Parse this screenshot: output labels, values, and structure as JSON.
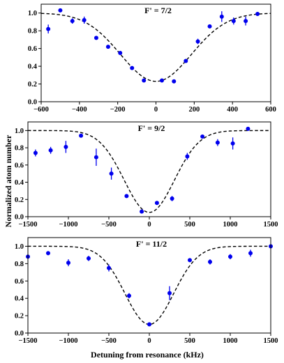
{
  "figure": {
    "xlabel": "Detuning from resonance (kHz)",
    "ylabel": "Normalized atom number"
  },
  "colors": {
    "points": "#0000ee",
    "fit": "#000000",
    "axes": "#000000"
  },
  "chart_data": [
    {
      "type": "scatter",
      "title": "F' = 7/2",
      "xlim": [
        -600,
        600
      ],
      "ylim": [
        0,
        1.1
      ],
      "xticks": [
        -600,
        -400,
        -200,
        0,
        200,
        400,
        600
      ],
      "yticks": [
        0.0,
        0.2,
        0.4,
        0.6,
        0.8,
        1.0
      ],
      "xtick_labels": [
        "−600",
        "−400",
        "−200",
        "0",
        "200",
        "400",
        "600"
      ],
      "ytick_labels": [
        "0.0",
        "0.2",
        "0.4",
        "0.6",
        "0.8",
        "1.0"
      ],
      "fit": {
        "baseline": 1.0,
        "depth": 0.77,
        "sigma": 185,
        "center": 0
      },
      "points": [
        {
          "x": -563,
          "y": 0.82,
          "err": 0.05
        },
        {
          "x": -500,
          "y": 1.03,
          "err": 0.01
        },
        {
          "x": -437,
          "y": 0.91,
          "err": 0.03
        },
        {
          "x": -375,
          "y": 0.92,
          "err": 0.04
        },
        {
          "x": -312,
          "y": 0.72,
          "err": 0.01
        },
        {
          "x": -250,
          "y": 0.62,
          "err": 0.01
        },
        {
          "x": -187,
          "y": 0.55,
          "err": 0.01
        },
        {
          "x": -125,
          "y": 0.38,
          "err": 0.01
        },
        {
          "x": -63,
          "y": 0.24,
          "err": 0.01
        },
        {
          "x": 31,
          "y": 0.24,
          "err": 0.01
        },
        {
          "x": 94,
          "y": 0.23,
          "err": 0.01
        },
        {
          "x": 156,
          "y": 0.46,
          "err": 0.01
        },
        {
          "x": 219,
          "y": 0.68,
          "err": 0.03
        },
        {
          "x": 281,
          "y": 0.85,
          "err": 0.01
        },
        {
          "x": 344,
          "y": 0.96,
          "err": 0.06
        },
        {
          "x": 406,
          "y": 0.91,
          "err": 0.04
        },
        {
          "x": 469,
          "y": 0.91,
          "err": 0.05
        },
        {
          "x": 531,
          "y": 0.99,
          "err": 0.01
        }
      ]
    },
    {
      "type": "scatter",
      "title": "F' = 9/2",
      "xlim": [
        -1500,
        1500
      ],
      "ylim": [
        0,
        1.1
      ],
      "xticks": [
        -1500,
        -1000,
        -500,
        0,
        500,
        1000,
        1500
      ],
      "yticks": [
        0.0,
        0.2,
        0.4,
        0.6,
        0.8,
        1.0
      ],
      "xtick_labels": [
        "−1500",
        "−1000",
        "−500",
        "0",
        "500",
        "1000",
        "1500"
      ],
      "ytick_labels": [
        "0.0",
        "0.2",
        "0.4",
        "0.6",
        "0.8",
        "1.0"
      ],
      "fit": {
        "baseline": 1.0,
        "depth": 0.95,
        "sigma": 310,
        "center": 0
      },
      "points": [
        {
          "x": -1406,
          "y": 0.74,
          "err": 0.04
        },
        {
          "x": -1219,
          "y": 0.77,
          "err": 0.04
        },
        {
          "x": -1031,
          "y": 0.81,
          "err": 0.07
        },
        {
          "x": -844,
          "y": 0.94,
          "err": 0.02
        },
        {
          "x": -656,
          "y": 0.69,
          "err": 0.1
        },
        {
          "x": -469,
          "y": 0.5,
          "err": 0.07
        },
        {
          "x": -281,
          "y": 0.24,
          "err": 0.01
        },
        {
          "x": -94,
          "y": 0.06,
          "err": 0.01
        },
        {
          "x": 94,
          "y": 0.16,
          "err": 0.02
        },
        {
          "x": 281,
          "y": 0.21,
          "err": 0.03
        },
        {
          "x": 469,
          "y": 0.7,
          "err": 0.04
        },
        {
          "x": 656,
          "y": 0.93,
          "err": 0.02
        },
        {
          "x": 844,
          "y": 0.86,
          "err": 0.04
        },
        {
          "x": 1031,
          "y": 0.85,
          "err": 0.07
        },
        {
          "x": 1219,
          "y": 1.02,
          "err": 0.02
        }
      ]
    },
    {
      "type": "scatter",
      "title": "F' = 11/2",
      "xlim": [
        -1500,
        1500
      ],
      "ylim": [
        0,
        1.1
      ],
      "xticks": [
        -1500,
        -1000,
        -500,
        0,
        500,
        1000,
        1500
      ],
      "yticks": [
        0.0,
        0.2,
        0.4,
        0.6,
        0.8,
        1.0
      ],
      "xtick_labels": [
        "−1500",
        "−1000",
        "−500",
        "0",
        "500",
        "1000",
        "1500"
      ],
      "ytick_labels": [
        "0.0",
        "0.2",
        "0.4",
        "0.6",
        "0.8",
        "1.0"
      ],
      "fit": {
        "baseline": 1.0,
        "depth": 0.9,
        "sigma": 300,
        "center": 0
      },
      "points": [
        {
          "x": -1500,
          "y": 0.88,
          "err": 0.02
        },
        {
          "x": -1250,
          "y": 0.92,
          "err": 0.02
        },
        {
          "x": -1000,
          "y": 0.81,
          "err": 0.04
        },
        {
          "x": -750,
          "y": 0.86,
          "err": 0.03
        },
        {
          "x": -500,
          "y": 0.75,
          "err": 0.04
        },
        {
          "x": -250,
          "y": 0.43,
          "err": 0.03
        },
        {
          "x": 0,
          "y": 0.1,
          "err": 0.01
        },
        {
          "x": 250,
          "y": 0.46,
          "err": 0.08
        },
        {
          "x": 500,
          "y": 0.84,
          "err": 0.01
        },
        {
          "x": 750,
          "y": 0.82,
          "err": 0.03
        },
        {
          "x": 1000,
          "y": 0.88,
          "err": 0.03
        },
        {
          "x": 1250,
          "y": 0.92,
          "err": 0.04
        },
        {
          "x": 1500,
          "y": 1.0,
          "err": 0.01
        }
      ]
    }
  ]
}
